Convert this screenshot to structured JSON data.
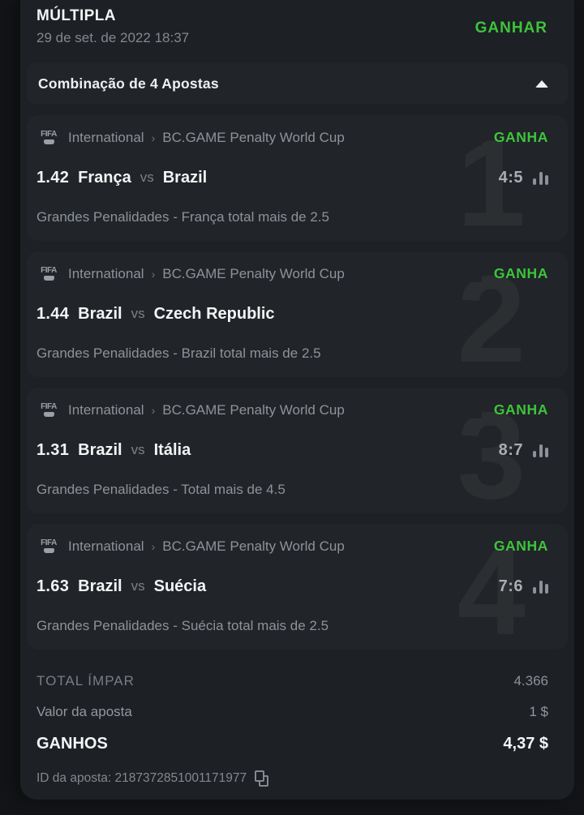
{
  "header": {
    "title": "MÚLTIPLA",
    "date": "29 de set. de 2022 18:37",
    "status": "GANHAR"
  },
  "combination": {
    "label": "Combinação de 4 Apostas",
    "collapse_icon": "chevron-up-icon"
  },
  "meta": {
    "league_icon": "fifa-icon",
    "fifa_label": "FIFA",
    "separator": "›"
  },
  "bets": [
    {
      "number": "1",
      "league": "International",
      "tournament": "BC.GAME Penalty World Cup",
      "status": "GANHA",
      "odds": "1.42",
      "home": "França",
      "vs_label": "vs",
      "away": "Brazil",
      "score": "4:5",
      "market": "Grandes Penalidades - França total mais de 2.5"
    },
    {
      "number": "2",
      "league": "International",
      "tournament": "BC.GAME Penalty World Cup",
      "status": "GANHA",
      "odds": "1.44",
      "home": "Brazil",
      "vs_label": "vs",
      "away": "Czech Republic",
      "score": "",
      "market": "Grandes Penalidades - Brazil total mais de 2.5"
    },
    {
      "number": "3",
      "league": "International",
      "tournament": "BC.GAME Penalty World Cup",
      "status": "GANHA",
      "odds": "1.31",
      "home": "Brazil",
      "vs_label": "vs",
      "away": "Itália",
      "score": "8:7",
      "market": "Grandes Penalidades - Total mais de 4.5"
    },
    {
      "number": "4",
      "league": "International",
      "tournament": "BC.GAME Penalty World Cup",
      "status": "GANHA",
      "odds": "1.63",
      "home": "Brazil",
      "vs_label": "vs",
      "away": "Suécia",
      "score": "7:6",
      "market": "Grandes Penalidades - Suécia total mais de 2.5"
    }
  ],
  "summary": {
    "total_odds_label": "TOTAL ÍMPAR",
    "total_odds_value": "4.366",
    "stake_label": "Valor da aposta",
    "stake_value": "1 $",
    "winnings_label": "GANHOS",
    "winnings_value": "4,37 $",
    "bet_id_text": "ID da aposta: 2187372851001171977",
    "copy_icon": "copy-icon"
  },
  "colors": {
    "accent_green": "#3ec43c",
    "panel_bg": "#1d2024",
    "card_bg": "#212428",
    "page_bg": "#121417"
  }
}
